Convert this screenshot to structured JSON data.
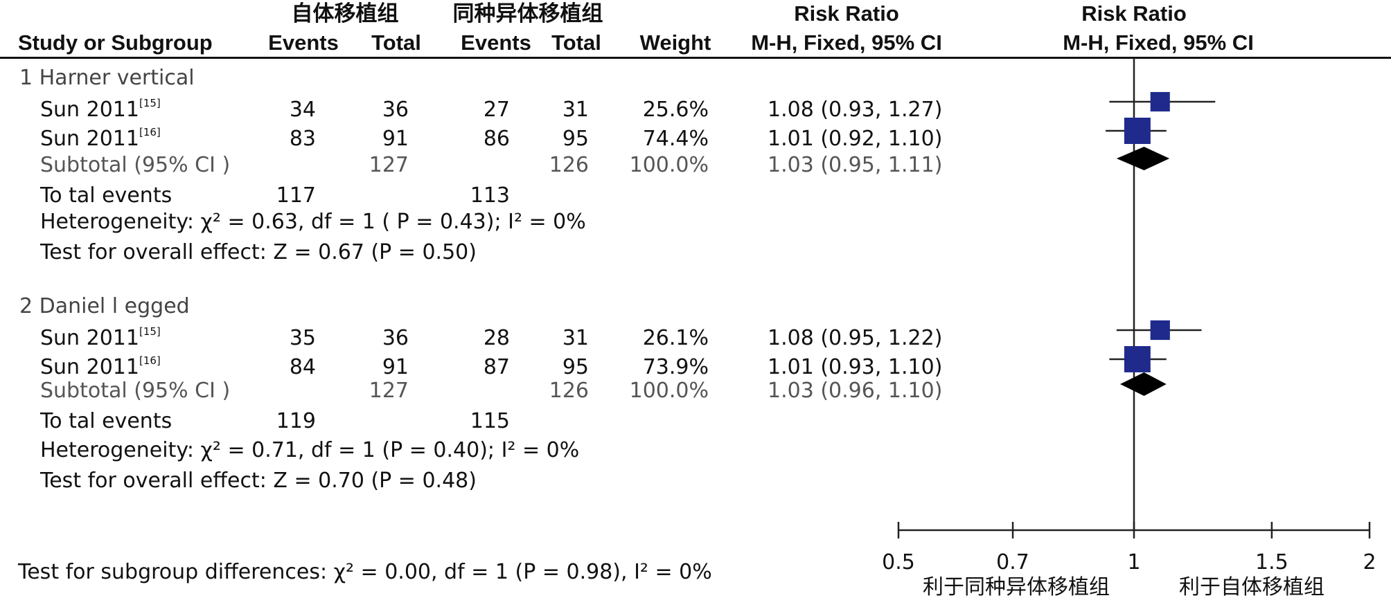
{
  "header": {
    "experimental_group": "自体移植组",
    "control_group": "同种异体移植组",
    "study_col": "Study or Subgroup",
    "events_label": "Events",
    "total_label": "Total",
    "weight_label": "Weight",
    "rr_title": "Risk Ratio",
    "rr_method": "M-H, Fixed, 95% CI",
    "plot_title": "Risk Ratio",
    "plot_method": "M-H, Fixed, 95% CI"
  },
  "groups": [
    {
      "title": "1 Harner vertical",
      "studies": [
        {
          "name": "Sun 2011",
          "ref": "[15]",
          "exp_events": "34",
          "exp_total": "36",
          "ctl_events": "27",
          "ctl_total": "31",
          "weight": "25.6%",
          "ci_text": "1.08 (0.93, 1.27)"
        },
        {
          "name": "Sun 2011",
          "ref": "[16]",
          "exp_events": "83",
          "exp_total": "91",
          "ctl_events": "86",
          "ctl_total": "95",
          "weight": "74.4%",
          "ci_text": "1.01 (0.92, 1.10)"
        }
      ],
      "subtotal": {
        "label": "Subtotal (95% CI )",
        "exp_total": "127",
        "ctl_total": "126",
        "weight": "100.0%",
        "ci_text": "1.03 (0.95, 1.11)"
      },
      "total_events": {
        "label": "To tal events",
        "exp": "117",
        "ctl": "113"
      },
      "heterogeneity": "Heterogeneity:  χ² = 0.63, df = 1 (  P = 0.43); I² = 0%",
      "overall_effect": "Test for overall effect: Z = 0.67 (P = 0.50)"
    },
    {
      "title": "2 Daniel       l egged",
      "studies": [
        {
          "name": "Sun 2011",
          "ref": "[15]",
          "exp_events": "35",
          "exp_total": "36",
          "ctl_events": "28",
          "ctl_total": "31",
          "weight": "26.1%",
          "ci_text": "1.08 (0.95, 1.22)"
        },
        {
          "name": "Sun 2011",
          "ref": "[16]",
          "exp_events": "84",
          "exp_total": "91",
          "ctl_events": "87",
          "ctl_total": "95",
          "weight": "73.9%",
          "ci_text": "1.01 (0.93, 1.10)"
        }
      ],
      "subtotal": {
        "label": "Subtotal (95% CI )",
        "exp_total": "127",
        "ctl_total": "126",
        "weight": "100.0%",
        "ci_text": "1.03 (0.96, 1.10)"
      },
      "total_events": {
        "label": "To tal events",
        "exp": "119",
        "ctl": "115"
      },
      "heterogeneity": "Heterogeneity:  χ² = 0.71, df = 1 (P = 0.40); I² = 0%",
      "overall_effect": "Test for overall effect: Z = 0.70 (P = 0.48)"
    }
  ],
  "subgroup_test": "Test for subgroup differences:  χ² = 0.00, df = 1 (P = 0.98), I² = 0%",
  "chart_data": {
    "type": "forest",
    "scale": "log",
    "xlim": [
      0.5,
      2
    ],
    "reference_line": 1,
    "ticks": [
      0.5,
      0.7,
      1,
      1.5,
      2
    ],
    "tick_labels": [
      "0.5",
      "0.7",
      "1",
      "1.5",
      "2"
    ],
    "left_caption": "利于同种异体移植组",
    "right_caption": "利于自体移植组",
    "colors": {
      "study_marker": "#1f2a8c",
      "diamond": "#000000",
      "line": "#222222"
    },
    "rows": [
      {
        "kind": "study",
        "group": 0,
        "rr": 1.08,
        "lower": 0.93,
        "upper": 1.27,
        "weight": 25.6
      },
      {
        "kind": "study",
        "group": 0,
        "rr": 1.01,
        "lower": 0.92,
        "upper": 1.1,
        "weight": 74.4
      },
      {
        "kind": "subtotal",
        "group": 0,
        "rr": 1.03,
        "lower": 0.95,
        "upper": 1.11
      },
      {
        "kind": "study",
        "group": 1,
        "rr": 1.08,
        "lower": 0.95,
        "upper": 1.22,
        "weight": 26.1
      },
      {
        "kind": "study",
        "group": 1,
        "rr": 1.01,
        "lower": 0.93,
        "upper": 1.1,
        "weight": 73.9
      },
      {
        "kind": "subtotal",
        "group": 1,
        "rr": 1.03,
        "lower": 0.96,
        "upper": 1.1
      }
    ]
  }
}
